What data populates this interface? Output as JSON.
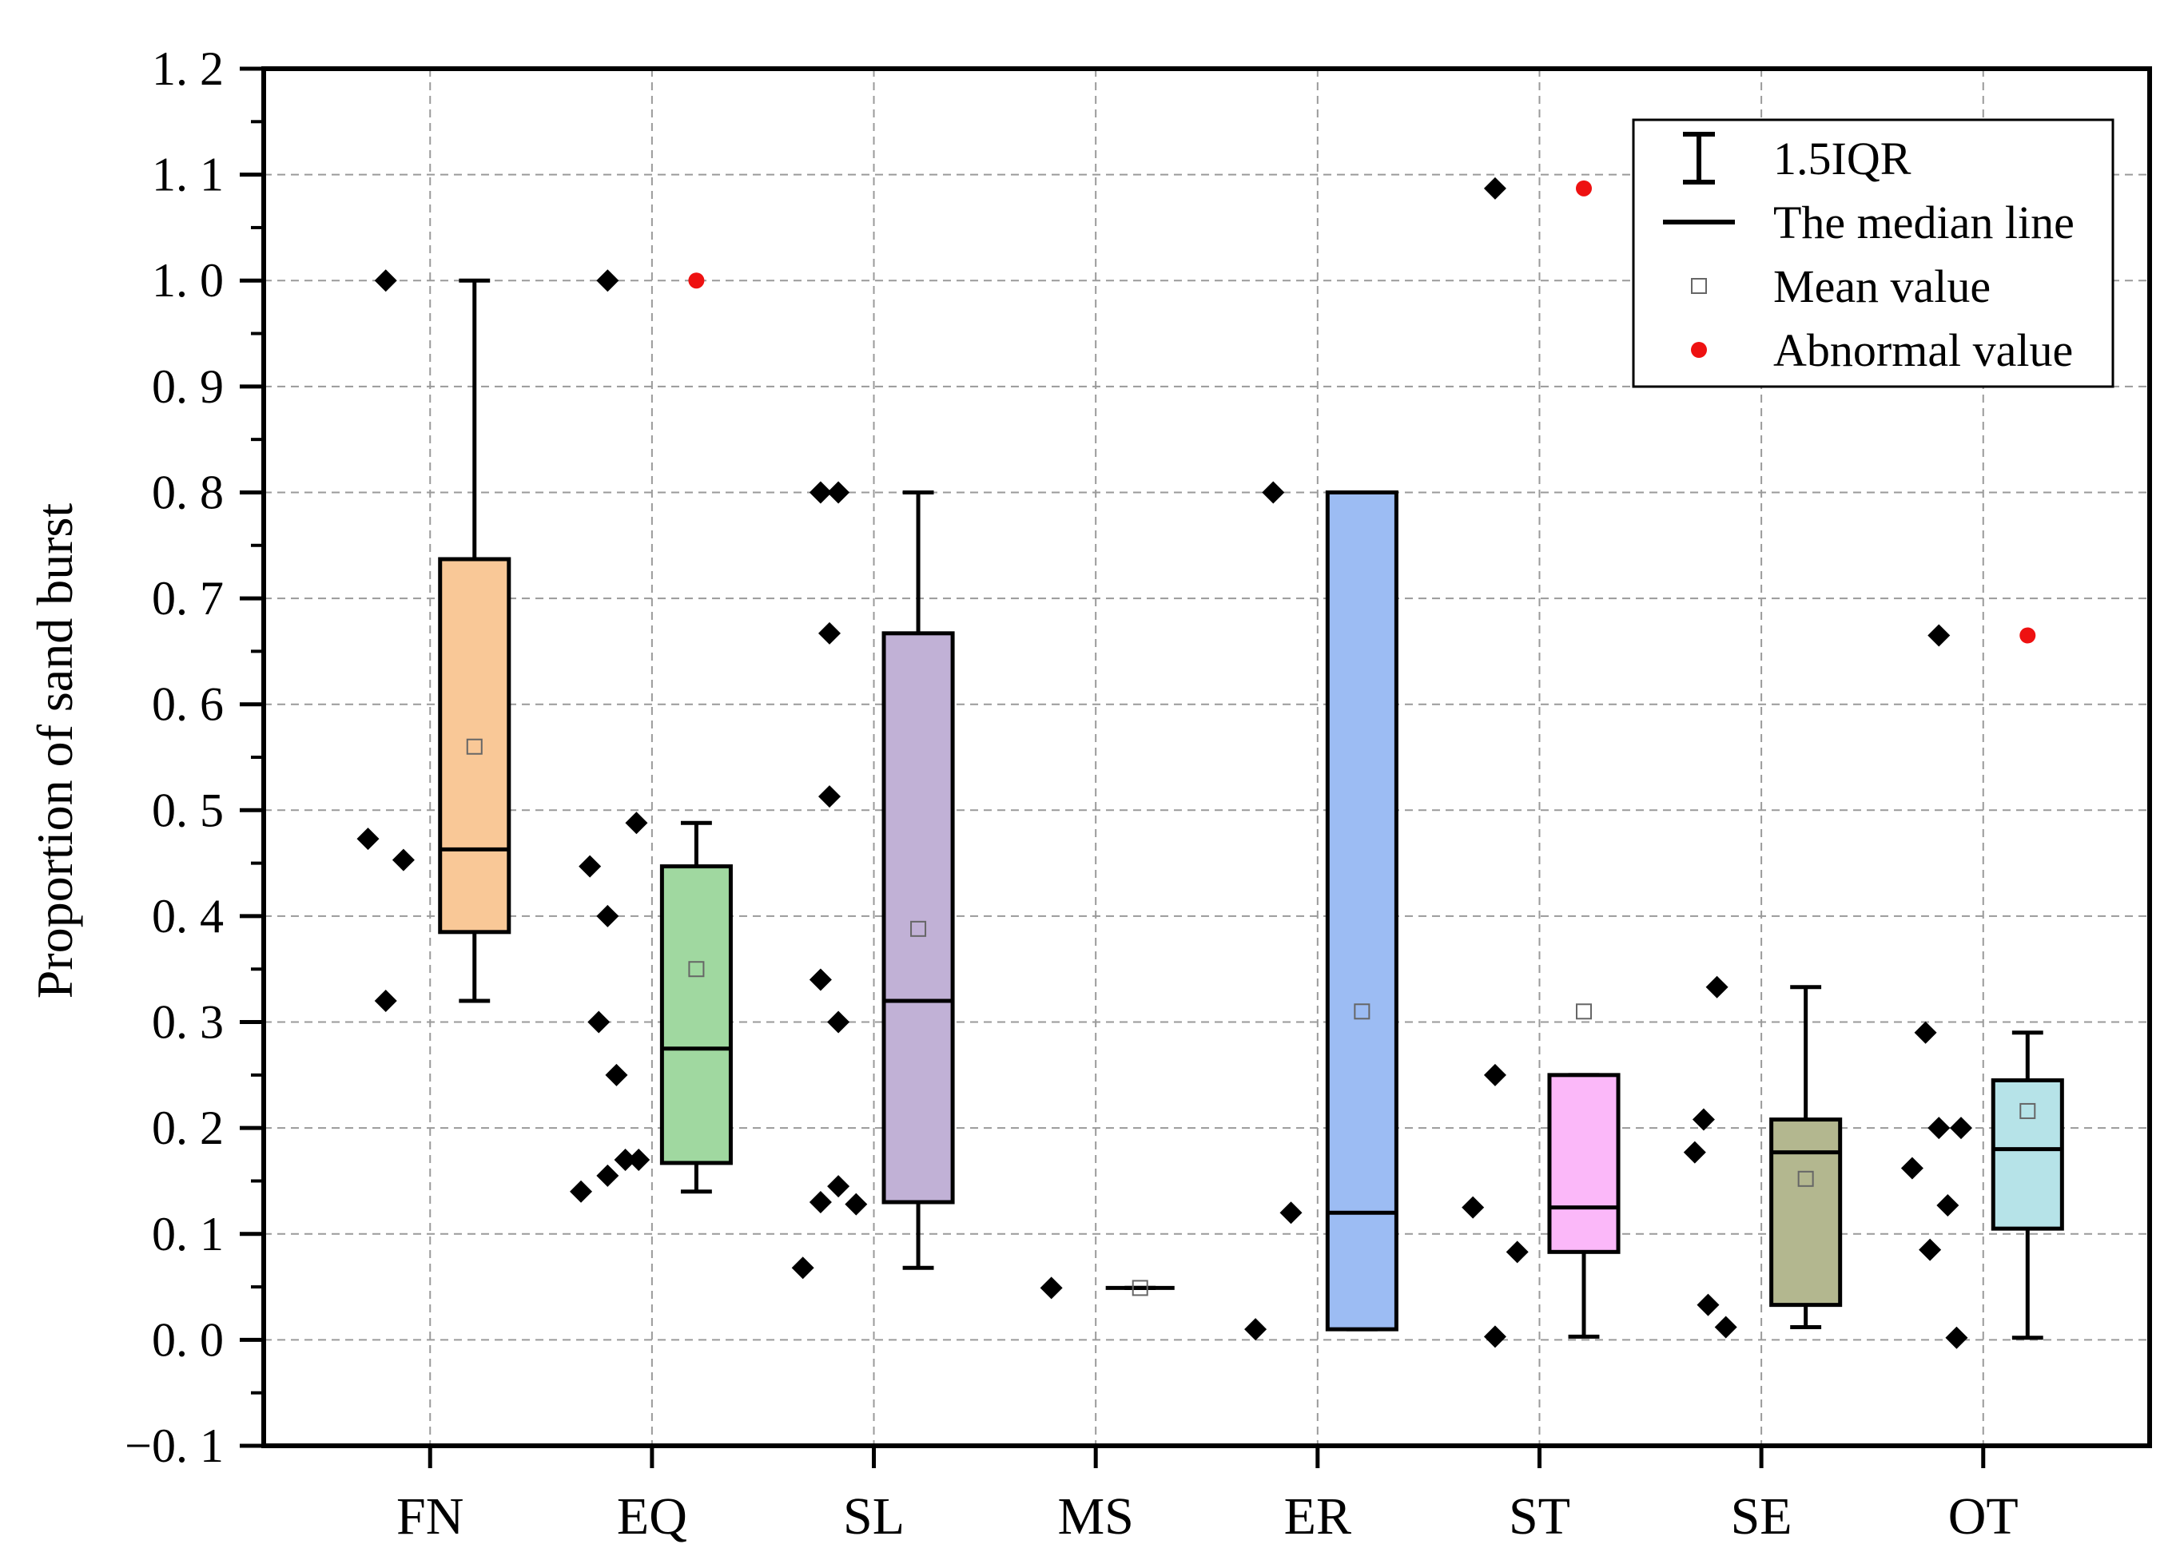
{
  "chart_data": {
    "type": "box",
    "title": "",
    "xlabel": "",
    "ylabel": "Proportion of sand burst",
    "ylim": [
      -0.1,
      1.2
    ],
    "yticks": [
      -0.1,
      0.0,
      0.1,
      0.2,
      0.3,
      0.4,
      0.5,
      0.6,
      0.7,
      0.8,
      0.9,
      1.0,
      1.1,
      1.2
    ],
    "ytick_labels": [
      "−0. 1",
      "0. 0",
      "0. 1",
      "0. 2",
      "0. 3",
      "0. 4",
      "0. 5",
      "0. 6",
      "0. 7",
      "0. 8",
      "0. 9",
      "1. 0",
      "1. 1",
      "1. 2"
    ],
    "grid": true,
    "categories": [
      "FN",
      "EQ",
      "SL",
      "MS",
      "ER",
      "ST",
      "SE",
      "OT"
    ],
    "colors": {
      "FN": "#f9c897",
      "EQ": "#a0d8a0",
      "SL": "#c1b1d6",
      "MS": "#ffffff",
      "ER": "#9cbcf3",
      "ST": "#fbb8f9",
      "SE": "#b3b78f",
      "OT": "#b6e3e8",
      "point": "#000000",
      "outlier": "#ee1111",
      "mean": "#666666"
    },
    "boxes": [
      {
        "category": "FN",
        "q1": 0.385,
        "median": 0.463,
        "q3": 0.737,
        "whisker_low": 0.32,
        "whisker_high": 1.0,
        "mean": 0.56,
        "points": [
          [
            -0.4,
            1.0
          ],
          [
            -0.48,
            0.473
          ],
          [
            -0.32,
            0.453
          ],
          [
            -0.4,
            0.32
          ]
        ],
        "outliers": []
      },
      {
        "category": "EQ",
        "q1": 0.167,
        "median": 0.275,
        "q3": 0.447,
        "whisker_low": 0.14,
        "whisker_high": 0.488,
        "mean": 0.35,
        "points": [
          [
            -0.4,
            1.0
          ],
          [
            -0.27,
            0.488
          ],
          [
            -0.48,
            0.447
          ],
          [
            -0.4,
            0.4
          ],
          [
            -0.44,
            0.3
          ],
          [
            -0.36,
            0.25
          ],
          [
            -0.32,
            0.17
          ],
          [
            -0.26,
            0.17
          ],
          [
            -0.4,
            0.155
          ],
          [
            -0.52,
            0.14
          ]
        ],
        "outliers": [
          1.0
        ]
      },
      {
        "category": "SL",
        "q1": 0.13,
        "median": 0.32,
        "q3": 0.667,
        "whisker_low": 0.068,
        "whisker_high": 0.8,
        "mean": 0.388,
        "points": [
          [
            -0.44,
            0.8
          ],
          [
            -0.36,
            0.8
          ],
          [
            -0.4,
            0.667
          ],
          [
            -0.4,
            0.513
          ],
          [
            -0.44,
            0.34
          ],
          [
            -0.36,
            0.3
          ],
          [
            -0.36,
            0.145
          ],
          [
            -0.44,
            0.13
          ],
          [
            -0.28,
            0.128
          ],
          [
            -0.52,
            0.068
          ]
        ],
        "outliers": []
      },
      {
        "category": "MS",
        "q1": 0.049,
        "median": 0.049,
        "q3": 0.049,
        "whisker_low": 0.049,
        "whisker_high": 0.049,
        "mean": 0.049,
        "points": [
          [
            -0.4,
            0.049
          ]
        ],
        "outliers": []
      },
      {
        "category": "ER",
        "q1": 0.01,
        "median": 0.12,
        "q3": 0.8,
        "whisker_low": 0.01,
        "whisker_high": 0.8,
        "mean": 0.31,
        "points": [
          [
            -0.4,
            0.8
          ],
          [
            -0.32,
            0.12
          ],
          [
            -0.48,
            0.01
          ]
        ],
        "outliers": []
      },
      {
        "category": "ST",
        "q1": 0.083,
        "median": 0.125,
        "q3": 0.25,
        "whisker_low": 0.003,
        "whisker_high": 0.25,
        "mean": 0.31,
        "points": [
          [
            -0.4,
            1.087
          ],
          [
            -0.4,
            0.25
          ],
          [
            -0.5,
            0.125
          ],
          [
            -0.3,
            0.083
          ],
          [
            -0.4,
            0.003
          ]
        ],
        "outliers": [
          1.087
        ]
      },
      {
        "category": "SE",
        "q1": 0.033,
        "median": 0.177,
        "q3": 0.208,
        "whisker_low": 0.012,
        "whisker_high": 0.333,
        "mean": 0.152,
        "points": [
          [
            -0.4,
            0.333
          ],
          [
            -0.46,
            0.208
          ],
          [
            -0.5,
            0.177
          ],
          [
            -0.44,
            0.033
          ],
          [
            -0.36,
            0.012
          ]
        ],
        "outliers": []
      },
      {
        "category": "OT",
        "q1": 0.105,
        "median": 0.18,
        "q3": 0.245,
        "whisker_low": 0.002,
        "whisker_high": 0.29,
        "mean": 0.216,
        "points": [
          [
            -0.4,
            0.665
          ],
          [
            -0.46,
            0.29
          ],
          [
            -0.4,
            0.2
          ],
          [
            -0.3,
            0.2
          ],
          [
            -0.52,
            0.162
          ],
          [
            -0.36,
            0.127
          ],
          [
            -0.44,
            0.085
          ],
          [
            -0.32,
            0.002
          ]
        ],
        "outliers": [
          0.665
        ]
      }
    ],
    "legend": {
      "position": "top-right",
      "entries": [
        {
          "symbol": "whisker",
          "label": "1.5IQR"
        },
        {
          "symbol": "line",
          "label": "The median line"
        },
        {
          "symbol": "square",
          "label": "Mean value"
        },
        {
          "symbol": "dot",
          "label": "Abnormal value"
        }
      ]
    }
  }
}
